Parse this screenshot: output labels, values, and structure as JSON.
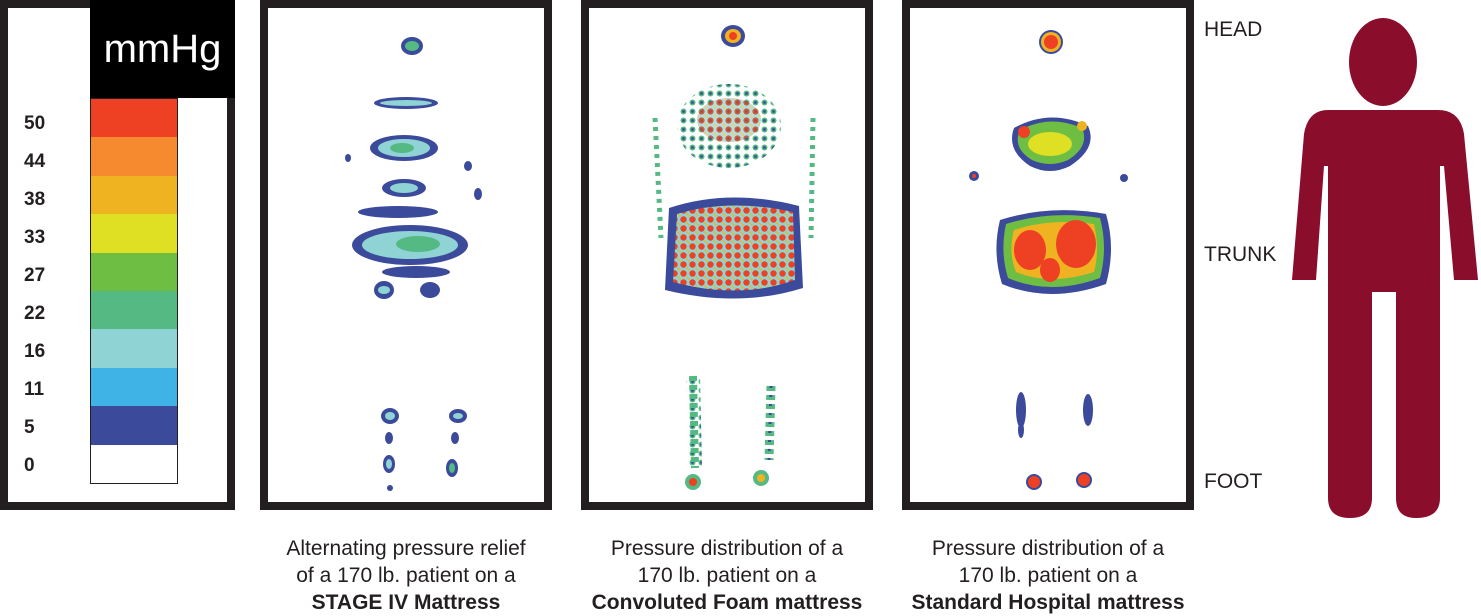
{
  "legend": {
    "unit": "mmHg",
    "levels": [
      {
        "label": "50",
        "color": "#ee4023"
      },
      {
        "label": "44",
        "color": "#f58a2e"
      },
      {
        "label": "38",
        "color": "#efb321"
      },
      {
        "label": "33",
        "color": "#dfe024"
      },
      {
        "label": "27",
        "color": "#6fbe44"
      },
      {
        "label": "22",
        "color": "#55b984"
      },
      {
        "label": "16",
        "color": "#8fd3d4"
      },
      {
        "label": "11",
        "color": "#3fb3e6"
      },
      {
        "label": "5",
        "color": "#3c4a9b"
      },
      {
        "label": "0",
        "color": "#ffffff"
      }
    ]
  },
  "panels": [
    {
      "caption_lines": [
        "Alternating pressure relief",
        "of a 170 lb. patient on a"
      ],
      "caption_bold": "STAGE IV Mattress"
    },
    {
      "caption_lines": [
        "Pressure distribution of a",
        "170 lb. patient on a"
      ],
      "caption_bold": "Convoluted Foam mattress"
    },
    {
      "caption_lines": [
        "Pressure distribution of a",
        "170 lb. patient on a"
      ],
      "caption_bold": "Standard Hospital mattress"
    }
  ],
  "regions": {
    "head": "HEAD",
    "trunk": "TRUNK",
    "foot": "FOOT"
  },
  "figure_color": "#8b0d2c"
}
